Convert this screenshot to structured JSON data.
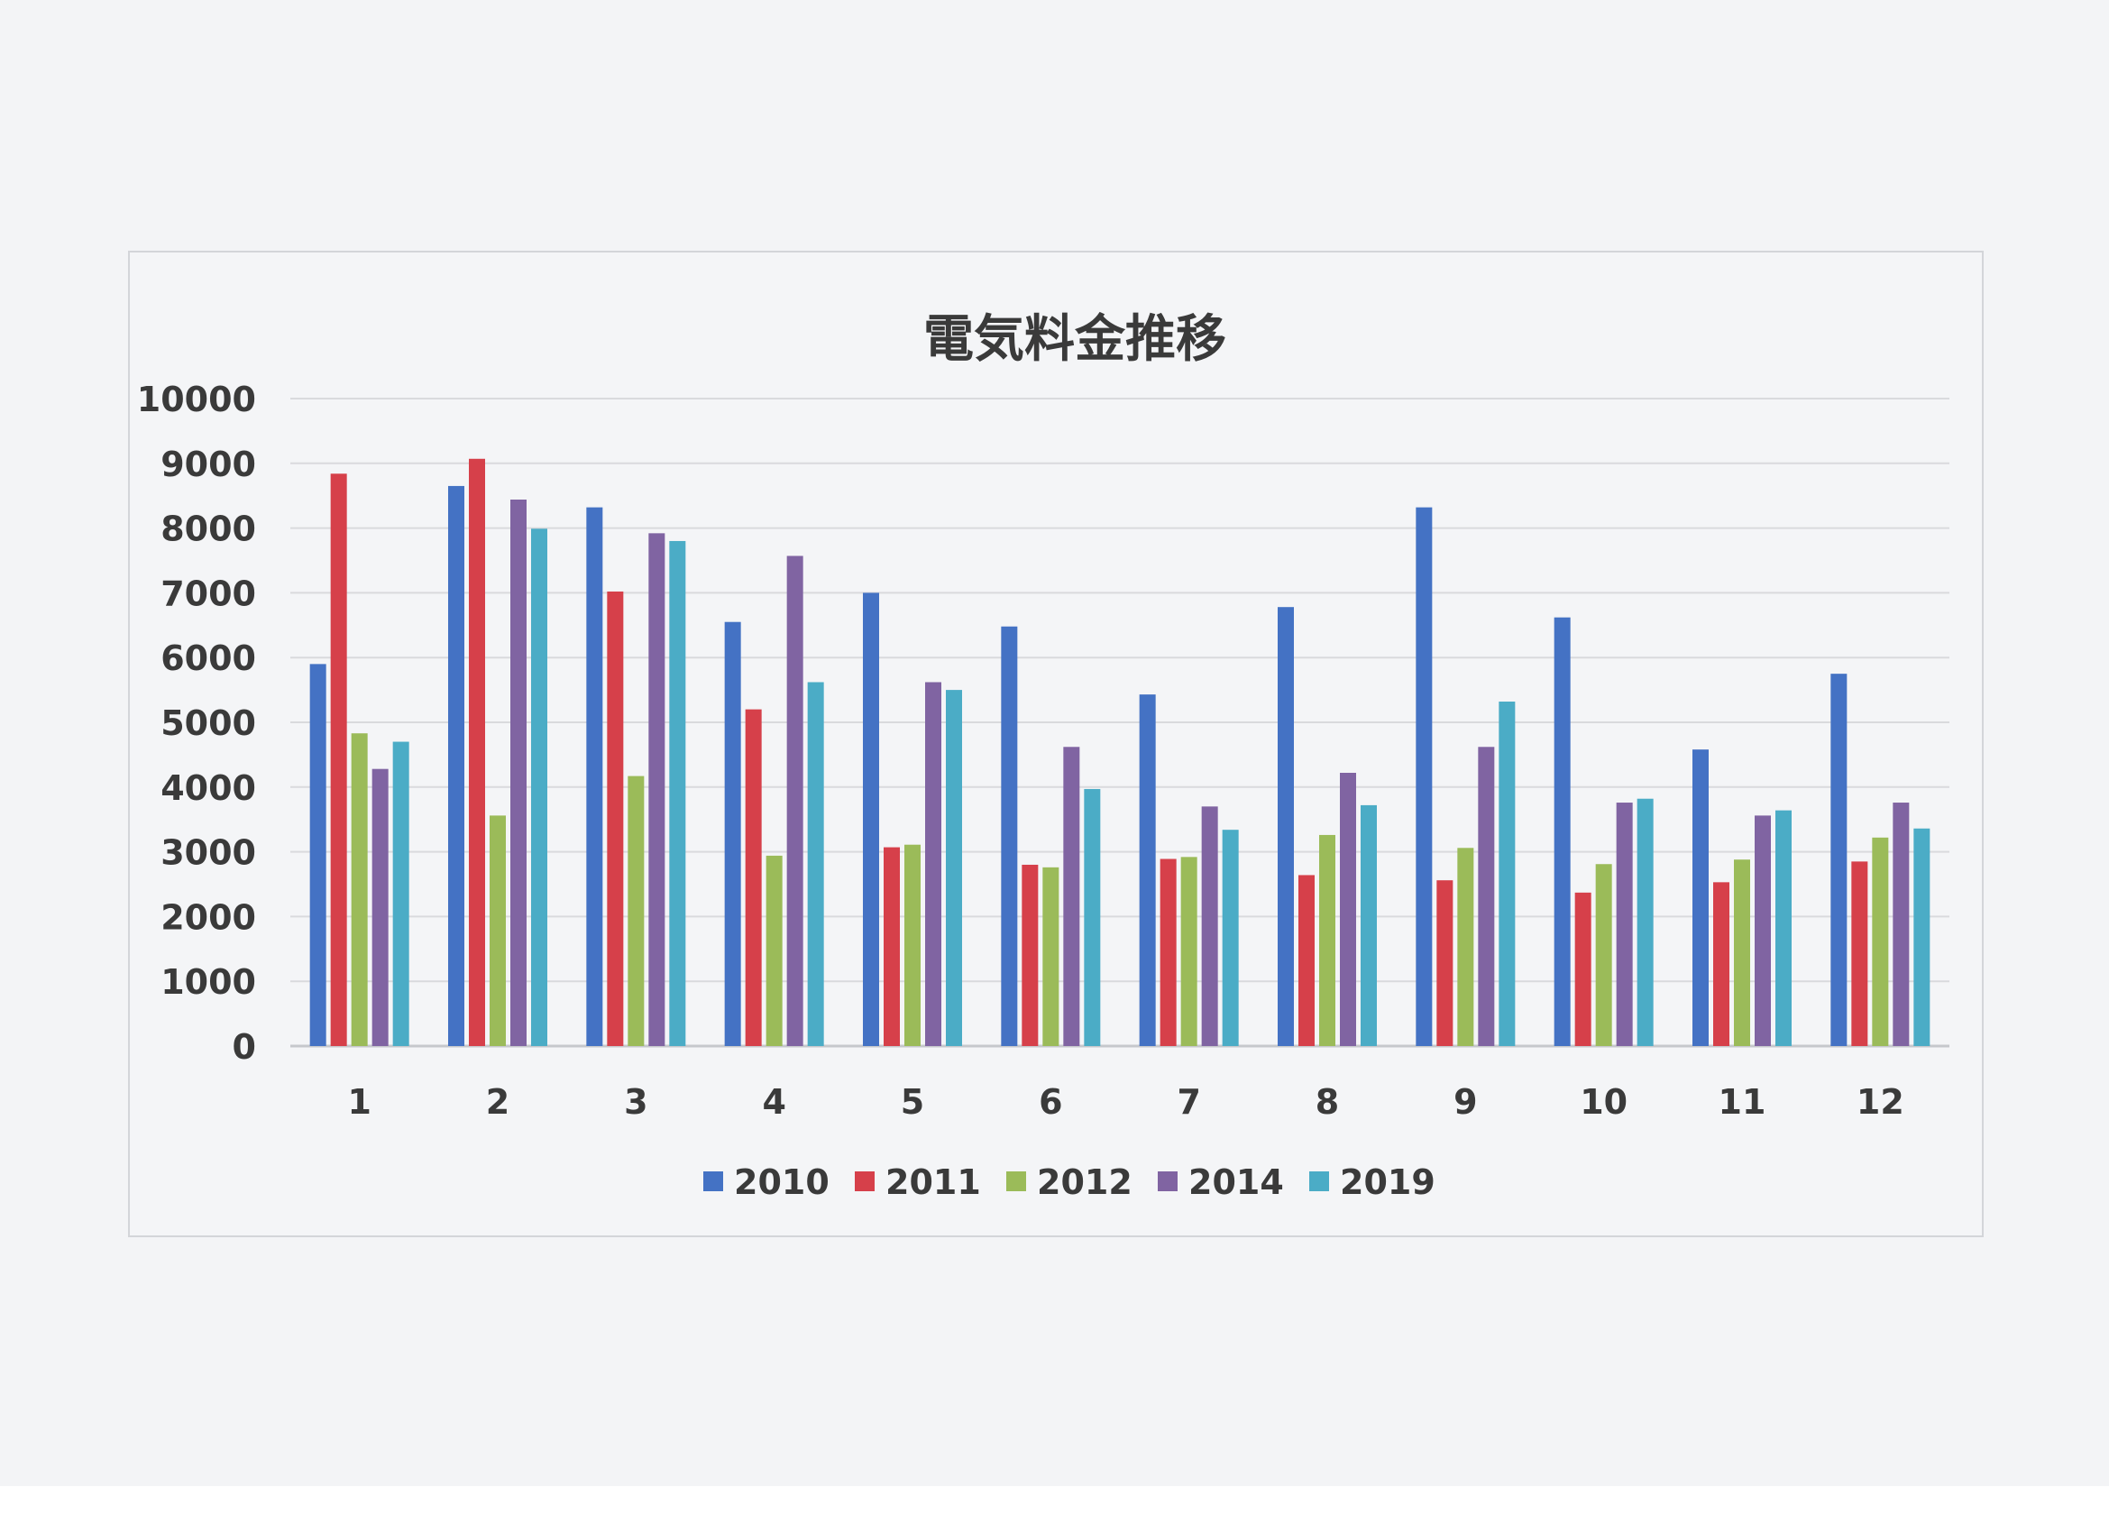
{
  "chart_data": {
    "type": "bar",
    "title": "電気料金推移",
    "xlabel": "",
    "ylabel": "",
    "ylim": [
      0,
      10000
    ],
    "yticks": [
      0,
      1000,
      2000,
      3000,
      4000,
      5000,
      6000,
      7000,
      8000,
      9000,
      10000
    ],
    "grid": true,
    "legend_position": "bottom",
    "categories": [
      "1",
      "2",
      "3",
      "4",
      "5",
      "6",
      "7",
      "8",
      "9",
      "10",
      "11",
      "12"
    ],
    "series": [
      {
        "name": "2010",
        "color": "#4472c4",
        "values": [
          5900,
          8650,
          8320,
          6550,
          7000,
          6480,
          5430,
          6780,
          8320,
          6620,
          4580,
          5750
        ]
      },
      {
        "name": "2011",
        "color": "#d6404a",
        "values": [
          8840,
          9070,
          7020,
          5200,
          3070,
          2800,
          2890,
          2640,
          2560,
          2370,
          2530,
          2850
        ]
      },
      {
        "name": "2012",
        "color": "#9bbb59",
        "values": [
          4830,
          3560,
          4170,
          2940,
          3110,
          2760,
          2920,
          3260,
          3060,
          2810,
          2880,
          3220
        ]
      },
      {
        "name": "2014",
        "color": "#8064a2",
        "values": [
          4280,
          8440,
          7920,
          7570,
          5620,
          4620,
          3700,
          4220,
          4620,
          3760,
          3560,
          3760
        ]
      },
      {
        "name": "2019",
        "color": "#4bacc6",
        "values": [
          4700,
          7990,
          7800,
          5620,
          5500,
          3970,
          3340,
          3720,
          5320,
          3820,
          3640,
          3360
        ]
      }
    ]
  }
}
